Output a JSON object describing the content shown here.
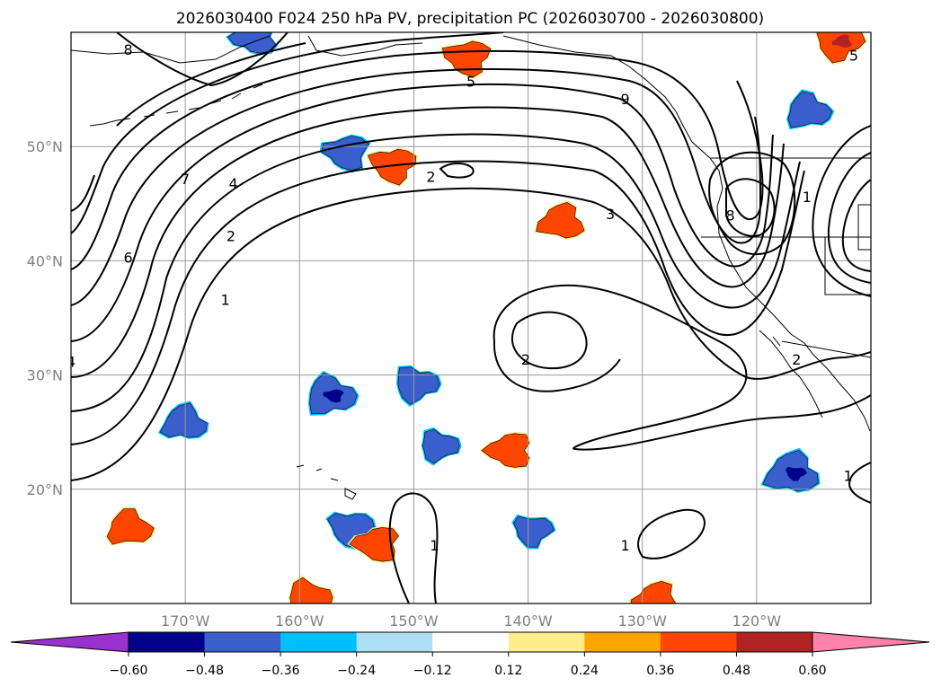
{
  "chart_data": {
    "type": "contour-map",
    "title": "2026030400 F024 250 hPa PV, precipitation PC (2026030700 - 2026030800)",
    "lon_ticks": [
      {
        "value": -170,
        "label": "170°W"
      },
      {
        "value": -160,
        "label": "160°W"
      },
      {
        "value": -150,
        "label": "150°W"
      },
      {
        "value": -140,
        "label": "140°W"
      },
      {
        "value": -130,
        "label": "130°W"
      },
      {
        "value": -120,
        "label": "120°W"
      }
    ],
    "lat_ticks": [
      {
        "value": 20,
        "label": "20°N"
      },
      {
        "value": 30,
        "label": "30°N"
      },
      {
        "value": 40,
        "label": "40°N"
      },
      {
        "value": 50,
        "label": "50°N"
      }
    ],
    "lon_range": [
      -180,
      -110
    ],
    "lat_range": [
      10,
      60
    ],
    "pv_contour_levels": [
      1,
      2,
      3,
      4,
      5,
      6,
      7,
      8,
      9
    ],
    "contour_labels": [
      {
        "text": "8",
        "lon": -175,
        "lat": 58.5
      },
      {
        "text": "5",
        "lon": -145,
        "lat": 55.7
      },
      {
        "text": "7",
        "lon": -170,
        "lat": 47.2
      },
      {
        "text": "4",
        "lon": -165.8,
        "lat": 46.8
      },
      {
        "text": "2",
        "lon": -148.5,
        "lat": 47.4
      },
      {
        "text": "6",
        "lon": -175,
        "lat": 40.3
      },
      {
        "text": "2",
        "lon": -166,
        "lat": 42.2
      },
      {
        "text": "1",
        "lon": -166.5,
        "lat": 36.6
      },
      {
        "text": "3",
        "lon": -132.8,
        "lat": 44.1
      },
      {
        "text": "8",
        "lon": -122.3,
        "lat": 44.0
      },
      {
        "text": "1",
        "lon": -115.6,
        "lat": 45.6
      },
      {
        "text": "9",
        "lon": -131.5,
        "lat": 54.2
      },
      {
        "text": "5",
        "lon": -111.5,
        "lat": 58.0
      },
      {
        "text": "2",
        "lon": -140.2,
        "lat": 31.4
      },
      {
        "text": "2",
        "lon": -116.5,
        "lat": 31.4
      },
      {
        "text": "1",
        "lon": -112,
        "lat": 21.2
      },
      {
        "text": "1",
        "lon": -148.2,
        "lat": 15.1
      },
      {
        "text": "1",
        "lon": -131.5,
        "lat": 15.1
      },
      {
        "text": "4",
        "lon": -180,
        "lat": 31.2
      }
    ],
    "precip_pc_colorbar": {
      "boundaries": [
        -0.6,
        -0.48,
        -0.36,
        -0.24,
        -0.12,
        0.12,
        0.24,
        0.36,
        0.48,
        0.6
      ],
      "tick_labels": [
        "−0.60",
        "−0.48",
        "−0.36",
        "−0.24",
        "−0.12",
        "0.12",
        "0.24",
        "0.36",
        "0.48",
        "0.60"
      ],
      "colors": [
        "#9932CC",
        "#00008B",
        "#3A5FCD",
        "#00BFFF",
        "#ADDFF5",
        "#FFFFFF",
        "#FFEC8B",
        "#FFA500",
        "#FF4500",
        "#B22222",
        "#FF82AB"
      ],
      "extend": "both"
    },
    "precip_blobs": [
      {
        "lon": -170.1,
        "lat": 25.8,
        "value": -0.4
      },
      {
        "lon": -157.3,
        "lat": 28.2,
        "value": -0.5
      },
      {
        "lon": -149.8,
        "lat": 29.2,
        "value": -0.4
      },
      {
        "lon": -155.5,
        "lat": 16.6,
        "value": -0.4
      },
      {
        "lon": -155.9,
        "lat": 49.5,
        "value": -0.4
      },
      {
        "lon": -163.9,
        "lat": 59.6,
        "value": -0.4
      },
      {
        "lon": -116.9,
        "lat": 21.4,
        "value": -0.55
      },
      {
        "lon": -115.5,
        "lat": 53.1,
        "value": -0.4
      },
      {
        "lon": -147.8,
        "lat": 23.8,
        "value": -0.3
      },
      {
        "lon": -139.6,
        "lat": 16.4,
        "value": -0.3
      },
      {
        "lon": -145.3,
        "lat": 57.8,
        "value": 0.42
      },
      {
        "lon": -141.6,
        "lat": 23.4,
        "value": 0.42
      },
      {
        "lon": -137.1,
        "lat": 43.4,
        "value": 0.42
      },
      {
        "lon": -174.9,
        "lat": 16.6,
        "value": 0.42
      },
      {
        "lon": -159.2,
        "lat": 10.5,
        "value": 0.42
      },
      {
        "lon": -112.8,
        "lat": 59.2,
        "value": 0.48
      },
      {
        "lon": -151.8,
        "lat": 48.4,
        "value": 0.42
      },
      {
        "lon": -153.2,
        "lat": 15.2,
        "value": 0.42
      },
      {
        "lon": -128.8,
        "lat": 10.3,
        "value": 0.42
      }
    ]
  }
}
